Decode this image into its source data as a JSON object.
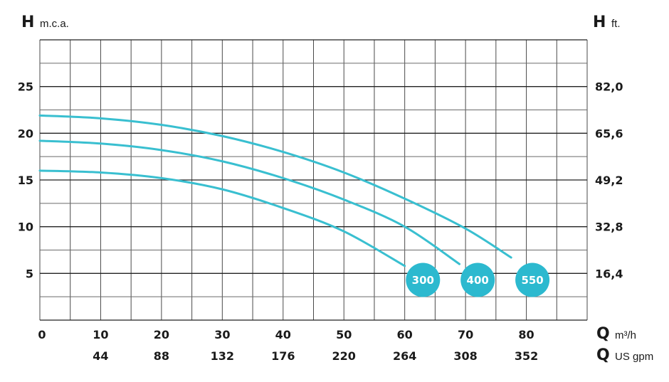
{
  "chart_data": {
    "type": "line",
    "left_axis": {
      "letter": "H",
      "unit": "m.c.a.",
      "ticks": [
        "5",
        "10",
        "15",
        "20",
        "25"
      ],
      "ylim": [
        0,
        30
      ]
    },
    "right_axis": {
      "letter": "H",
      "unit": "ft.",
      "ticks": [
        "16,4",
        "32,8",
        "49,2",
        "65,6",
        "82,0"
      ]
    },
    "x_axis_primary": {
      "letter": "Q",
      "unit": "m³/h",
      "ticks": [
        "0",
        "10",
        "20",
        "30",
        "40",
        "50",
        "60",
        "70",
        "80"
      ],
      "xlim": [
        0,
        90
      ]
    },
    "x_axis_secondary": {
      "letter": "Q",
      "unit": "US gpm",
      "ticks": [
        "44",
        "88",
        "132",
        "176",
        "220",
        "264",
        "308",
        "352"
      ]
    },
    "grid": true,
    "series": [
      {
        "name": "300",
        "x": [
          0,
          10,
          20,
          30,
          40,
          50,
          60
        ],
        "y": [
          16,
          15.8,
          15.2,
          14,
          12,
          9.5,
          5.8
        ]
      },
      {
        "name": "400",
        "x": [
          0,
          10,
          20,
          30,
          40,
          50,
          60,
          69
        ],
        "y": [
          19.2,
          18.9,
          18.2,
          17,
          15.2,
          12.9,
          10,
          6
        ]
      },
      {
        "name": "550",
        "x": [
          0,
          10,
          20,
          30,
          40,
          50,
          60,
          70,
          77.5
        ],
        "y": [
          21.9,
          21.6,
          20.9,
          19.7,
          18,
          15.8,
          13,
          9.8,
          6.7
        ]
      }
    ]
  },
  "colors": {
    "curve": "#39bfd0",
    "badge": "#2cb9cf",
    "grid": "#4a4a4a",
    "text": "#1a1a1a"
  }
}
